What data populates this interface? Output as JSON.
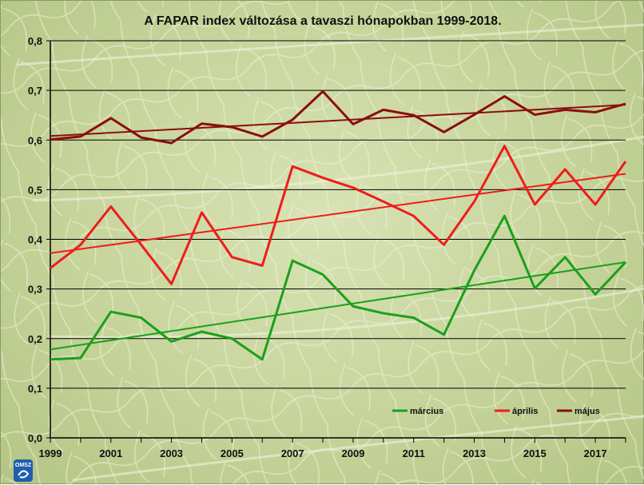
{
  "chart_data": {
    "type": "line",
    "title": "A FAPAR index változása a tavaszi hónapokban 1999-2018.",
    "x": [
      1999,
      2000,
      2001,
      2002,
      2003,
      2004,
      2005,
      2006,
      2007,
      2008,
      2009,
      2010,
      2011,
      2012,
      2013,
      2014,
      2015,
      2016,
      2017,
      2018
    ],
    "xlim": [
      1999,
      2018
    ],
    "ylim": [
      0,
      0.8
    ],
    "x_ticks": [
      "1999",
      "2001",
      "2003",
      "2005",
      "2007",
      "2009",
      "2011",
      "2013",
      "2015",
      "2017"
    ],
    "y_ticks": [
      "0,0",
      "0,1",
      "0,2",
      "0,3",
      "0,4",
      "0,5",
      "0,6",
      "0,7",
      "0,8"
    ],
    "grid": true,
    "legend_position": "bottom-right",
    "series": [
      {
        "name": "március",
        "color": "#1aa01a",
        "values": [
          0.158,
          0.161,
          0.254,
          0.242,
          0.194,
          0.214,
          0.2,
          0.158,
          0.357,
          0.329,
          0.265,
          0.251,
          0.242,
          0.208,
          0.337,
          0.447,
          0.301,
          0.364,
          0.289,
          0.354
        ],
        "trend": [
          0.178,
          0.354
        ]
      },
      {
        "name": "április",
        "color": "#ee1c1c",
        "values": [
          0.342,
          0.389,
          0.466,
          0.389,
          0.31,
          0.454,
          0.364,
          0.347,
          0.547,
          0.524,
          0.504,
          0.476,
          0.447,
          0.389,
          0.476,
          0.588,
          0.47,
          0.541,
          0.47,
          0.557
        ],
        "trend": [
          0.372,
          0.532
        ]
      },
      {
        "name": "május",
        "color": "#8b0e0e",
        "values": [
          0.601,
          0.607,
          0.644,
          0.605,
          0.594,
          0.633,
          0.626,
          0.607,
          0.641,
          0.698,
          0.632,
          0.661,
          0.65,
          0.616,
          0.651,
          0.688,
          0.651,
          0.661,
          0.656,
          0.673
        ],
        "trend": [
          0.608,
          0.671
        ]
      }
    ]
  },
  "logo": {
    "text": "OMSZ",
    "color": "#1f5fb0"
  }
}
